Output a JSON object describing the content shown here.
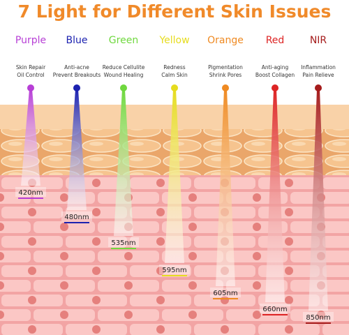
{
  "header": {
    "title": "7 Light for Different Skin Issues"
  },
  "lights": [
    {
      "name": "Purple",
      "color": "#b73fd6",
      "benefits": [
        "Skin Repair",
        "Oil Control"
      ],
      "wavelength": "420nm"
    },
    {
      "name": "Blue",
      "color": "#1c22b0",
      "benefits": [
        "Anti-acne",
        "Prevent Breakouts"
      ],
      "wavelength": "480nm"
    },
    {
      "name": "Green",
      "color": "#6fd83e",
      "benefits": [
        "Reduce Cellulite",
        "Wound Healing"
      ],
      "wavelength": "535nm"
    },
    {
      "name": "Yellow",
      "color": "#e6dc1e",
      "benefits": [
        "Redness",
        "Calm Skin"
      ],
      "wavelength": "595nm"
    },
    {
      "name": "Orange",
      "color": "#ef8a22",
      "benefits": [
        "Pigmentation",
        "Shrink Pores"
      ],
      "wavelength": "605nm"
    },
    {
      "name": "Red",
      "color": "#dd2424",
      "benefits": [
        "Anti-aging",
        "Boost Collagen"
      ],
      "wavelength": "660nm"
    },
    {
      "name": "NIR",
      "color": "#a51c1c",
      "benefits": [
        "Inflammation",
        "Pain Relieve"
      ],
      "wavelength": "850nm"
    }
  ]
}
